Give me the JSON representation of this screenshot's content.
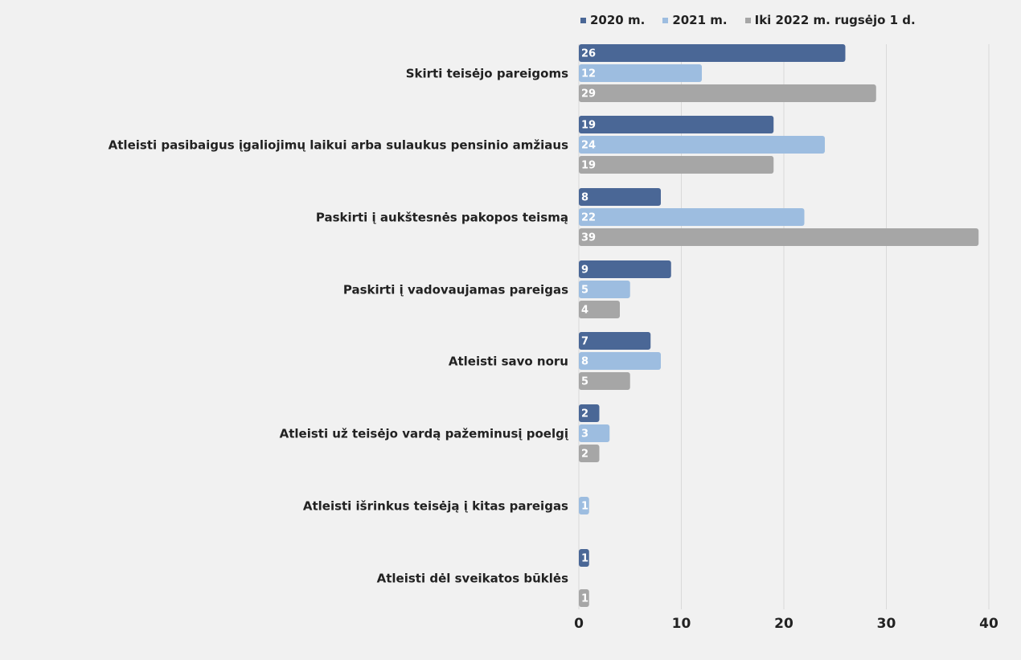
{
  "chart_data": {
    "type": "bar",
    "orientation": "horizontal",
    "categories": [
      "Skirti teisėjo pareigoms",
      "Atleisti pasibaigus įgaliojimų laikui  arba sulaukus pensinio amžiaus",
      "Paskirti į aukštesnės pakopos teismą",
      "Paskirti į vadovaujamas pareigas",
      "Atleisti savo noru",
      "Atleisti už teisėjo vardą pažeminusį poelgį",
      "Atleisti išrinkus teisėją į  kitas pareigas",
      "Atleisti dėl sveikatos būklės"
    ],
    "series": [
      {
        "name": "2020 m.",
        "color": "#4a6796",
        "values": [
          26,
          19,
          8,
          9,
          7,
          2,
          null,
          1
        ]
      },
      {
        "name": "2021 m.",
        "color": "#9dbde0",
        "values": [
          12,
          24,
          22,
          5,
          8,
          3,
          1,
          null
        ]
      },
      {
        "name": "Iki 2022 m. rugsėjo 1 d.",
        "color": "#a6a6a6",
        "values": [
          29,
          19,
          39,
          4,
          5,
          2,
          null,
          1
        ]
      }
    ],
    "xlim": [
      0,
      40
    ],
    "xticks": [
      "0",
      "10",
      "20",
      "30",
      "40"
    ],
    "grid": true,
    "legend": "top-right",
    "data_labels": true,
    "title": "",
    "xlabel": "",
    "ylabel": ""
  }
}
